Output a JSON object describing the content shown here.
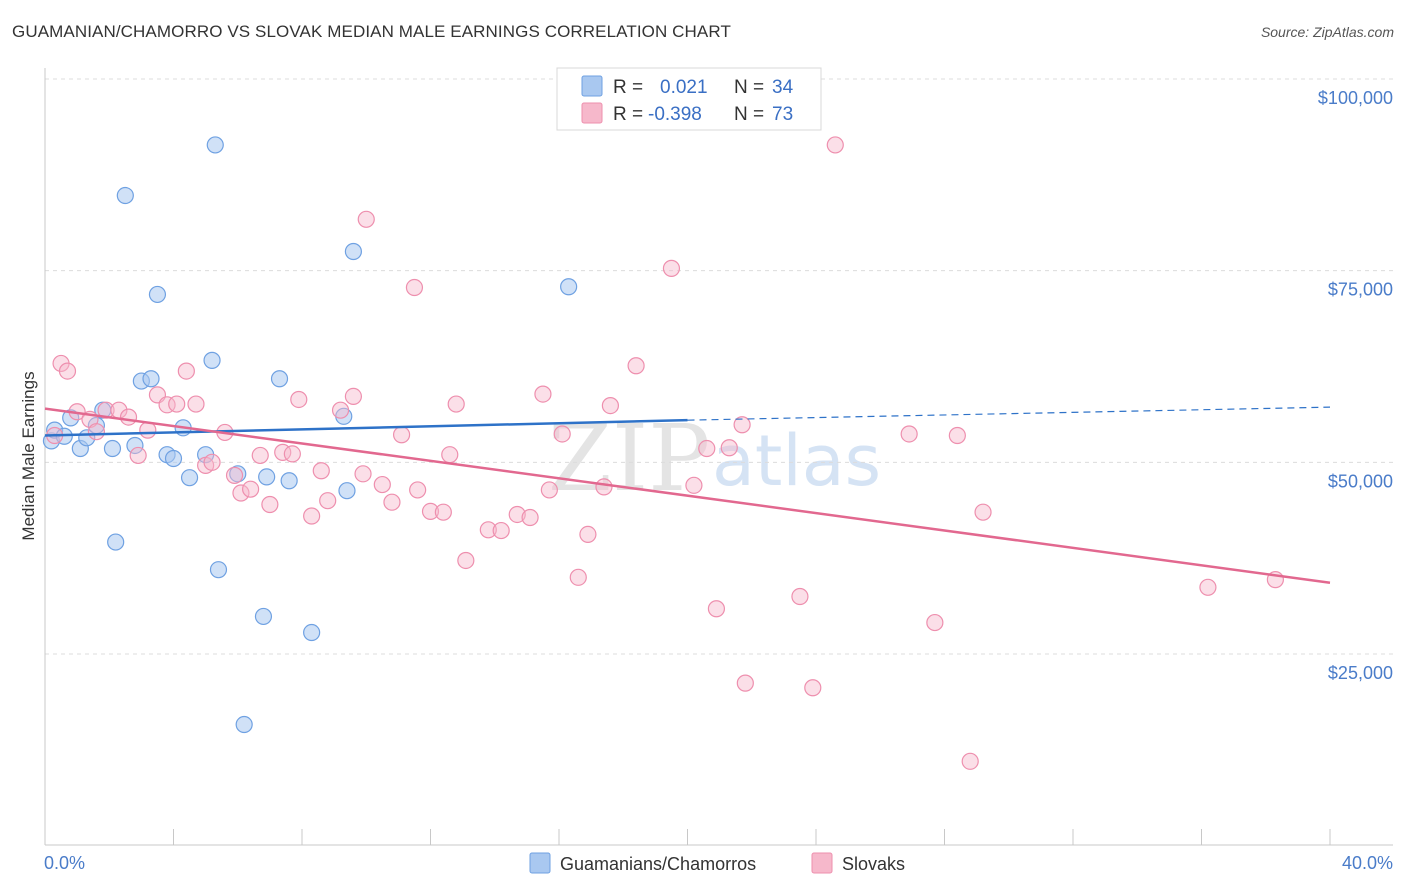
{
  "header": {
    "title": "GUAMANIAN/CHAMORRO VS SLOVAK MEDIAN MALE EARNINGS CORRELATION CHART",
    "source": "Source: ZipAtlas.com"
  },
  "watermark": {
    "zip": "ZIP",
    "atlas": "atlas"
  },
  "legend": {
    "rows": [
      {
        "r_label": "R =",
        "r_value": "0.021",
        "n_label": "N =",
        "n_value": "34",
        "color": "#a9c8f0"
      },
      {
        "r_label": "R =",
        "r_value": "-0.398",
        "n_label": "N =",
        "n_value": "73",
        "color": "#f6b8cb"
      }
    ]
  },
  "bottom_legend": {
    "items": [
      {
        "label": "Guamanians/Chamorros",
        "color": "#a9c8f0"
      },
      {
        "label": "Slovaks",
        "color": "#f6b8cb"
      }
    ]
  },
  "chart_data": {
    "type": "scatter",
    "title": "GUAMANIAN/CHAMORRO VS SLOVAK MEDIAN MALE EARNINGS CORRELATION CHART",
    "xlabel": "",
    "ylabel": "Median Male Earnings",
    "xlim": [
      0,
      40
    ],
    "ylim": [
      0,
      105000
    ],
    "x_tick_labels": [
      "0.0%",
      "40.0%"
    ],
    "y_ticks": [
      25000,
      50000,
      75000,
      100000
    ],
    "y_tick_labels": [
      "$25,000",
      "$50,000",
      "$75,000",
      "$100,000"
    ],
    "grid": true,
    "colors": {
      "guam": "#6fa1e2",
      "guam_fill": "#a9c8f0",
      "slovak": "#ee8fae",
      "slovak_fill": "#f6b8cb",
      "guam_line": "#2e72c8",
      "slovak_line": "#e2688f"
    },
    "series": [
      {
        "name": "Guamanians/Chamorros",
        "trend": {
          "x1": 0.0,
          "y1": 53500,
          "x2": 20.0,
          "y2": 55500,
          "dash_x2": 40.0,
          "dash_y2": 57200
        },
        "points": [
          [
            0.2,
            52800
          ],
          [
            0.3,
            54200
          ],
          [
            0.8,
            55800
          ],
          [
            1.1,
            51800
          ],
          [
            1.3,
            53200
          ],
          [
            1.8,
            56800
          ],
          [
            2.1,
            51800
          ],
          [
            2.2,
            39600
          ],
          [
            2.5,
            84800
          ],
          [
            2.8,
            52200
          ],
          [
            3.0,
            60600
          ],
          [
            3.3,
            60900
          ],
          [
            3.5,
            71900
          ],
          [
            3.8,
            51000
          ],
          [
            4.0,
            50500
          ],
          [
            4.3,
            54500
          ],
          [
            4.5,
            48000
          ],
          [
            5.0,
            51000
          ],
          [
            5.2,
            63300
          ],
          [
            5.3,
            91400
          ],
          [
            5.4,
            36000
          ],
          [
            6.0,
            48500
          ],
          [
            6.2,
            15800
          ],
          [
            6.8,
            29900
          ],
          [
            6.9,
            48100
          ],
          [
            7.3,
            60900
          ],
          [
            7.6,
            47600
          ],
          [
            8.3,
            27800
          ],
          [
            9.3,
            56000
          ],
          [
            9.4,
            46300
          ],
          [
            9.6,
            77500
          ],
          [
            16.3,
            72900
          ],
          [
            0.6,
            53400
          ],
          [
            1.6,
            54800
          ]
        ]
      },
      {
        "name": "Slovaks",
        "trend": {
          "x1": 0.0,
          "y1": 57000,
          "x2": 40.0,
          "y2": 34300
        },
        "points": [
          [
            0.3,
            53500
          ],
          [
            0.5,
            62900
          ],
          [
            0.7,
            61900
          ],
          [
            1.0,
            56600
          ],
          [
            1.4,
            55600
          ],
          [
            1.6,
            54000
          ],
          [
            1.9,
            56800
          ],
          [
            2.3,
            56800
          ],
          [
            2.6,
            55900
          ],
          [
            2.9,
            50900
          ],
          [
            3.2,
            54200
          ],
          [
            3.5,
            58800
          ],
          [
            3.8,
            57500
          ],
          [
            4.1,
            57600
          ],
          [
            4.4,
            61900
          ],
          [
            4.7,
            57600
          ],
          [
            5.0,
            49600
          ],
          [
            5.2,
            50000
          ],
          [
            5.6,
            53900
          ],
          [
            5.9,
            48300
          ],
          [
            6.1,
            46000
          ],
          [
            6.4,
            46500
          ],
          [
            6.7,
            50900
          ],
          [
            7.0,
            44500
          ],
          [
            7.4,
            51300
          ],
          [
            7.7,
            51100
          ],
          [
            7.9,
            58200
          ],
          [
            8.3,
            43000
          ],
          [
            8.6,
            48900
          ],
          [
            8.8,
            45000
          ],
          [
            9.2,
            56800
          ],
          [
            9.6,
            58600
          ],
          [
            9.9,
            48500
          ],
          [
            10.0,
            81700
          ],
          [
            10.5,
            47100
          ],
          [
            10.8,
            44800
          ],
          [
            11.1,
            53600
          ],
          [
            11.5,
            72800
          ],
          [
            11.6,
            46400
          ],
          [
            12.0,
            43600
          ],
          [
            12.4,
            43500
          ],
          [
            12.6,
            51000
          ],
          [
            12.8,
            57600
          ],
          [
            13.1,
            37200
          ],
          [
            13.8,
            41200
          ],
          [
            14.2,
            41100
          ],
          [
            14.7,
            43200
          ],
          [
            15.1,
            42800
          ],
          [
            15.5,
            58900
          ],
          [
            15.7,
            46400
          ],
          [
            16.1,
            53700
          ],
          [
            16.6,
            35000
          ],
          [
            16.9,
            40600
          ],
          [
            17.4,
            46800
          ],
          [
            17.6,
            57400
          ],
          [
            18.4,
            62600
          ],
          [
            19.5,
            75300
          ],
          [
            20.2,
            47000
          ],
          [
            20.6,
            51800
          ],
          [
            20.9,
            30900
          ],
          [
            21.3,
            51900
          ],
          [
            21.7,
            54900
          ],
          [
            21.8,
            21200
          ],
          [
            23.5,
            32500
          ],
          [
            23.9,
            20600
          ],
          [
            24.6,
            91400
          ],
          [
            26.9,
            53700
          ],
          [
            27.7,
            29100
          ],
          [
            28.4,
            53500
          ],
          [
            28.8,
            11000
          ],
          [
            29.2,
            43500
          ],
          [
            36.2,
            33700
          ],
          [
            38.3,
            34700
          ]
        ]
      }
    ]
  }
}
